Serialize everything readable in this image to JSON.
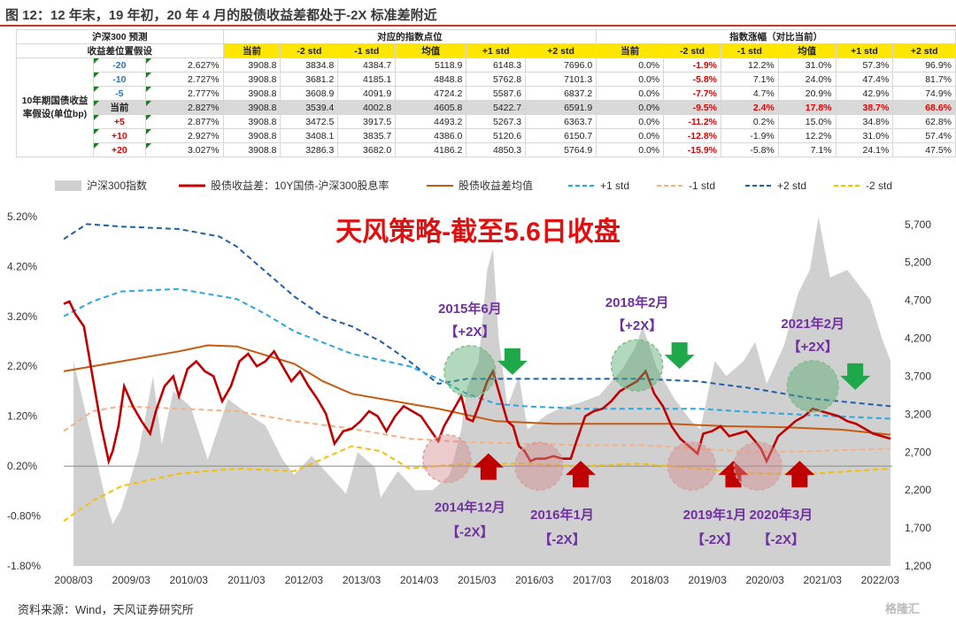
{
  "title": "图 12：12 年末，19 年初，20 年 4 月的股债收益差都处于-2X 标准差附近",
  "table": {
    "top_left_label": "沪深300 预测",
    "second_left_label": "收益差位置假设",
    "group_index_label": "对应的指数点位",
    "group_change_label": "指数涨幅（对比当前）",
    "row_group_label": "10年期国债收益率假设(单位bp)",
    "columns": [
      "当前",
      "-2 std",
      "-1 std",
      "均值",
      "+1 std",
      "+2 std"
    ],
    "rows": [
      {
        "shift": "-20",
        "yield": "2.627%",
        "idx": [
          "3908.8",
          "3834.8",
          "4384.7",
          "5118.9",
          "6148.3",
          "7696.0"
        ],
        "chg": [
          "0.0%",
          "-1.9%",
          "12.2%",
          "31.0%",
          "57.3%",
          "96.9%"
        ]
      },
      {
        "shift": "-10",
        "yield": "2.727%",
        "idx": [
          "3908.8",
          "3681.2",
          "4185.1",
          "4848.8",
          "5762.8",
          "7101.3"
        ],
        "chg": [
          "0.0%",
          "-5.8%",
          "7.1%",
          "24.0%",
          "47.4%",
          "81.7%"
        ]
      },
      {
        "shift": "-5",
        "yield": "2.777%",
        "idx": [
          "3908.8",
          "3608.9",
          "4091.9",
          "4724.2",
          "5587.6",
          "6837.2"
        ],
        "chg": [
          "0.0%",
          "-7.7%",
          "4.7%",
          "20.9%",
          "42.9%",
          "74.9%"
        ]
      },
      {
        "shift": "当前",
        "yield": "2.827%",
        "idx": [
          "3908.8",
          "3539.4",
          "4002.8",
          "4605.8",
          "5422.7",
          "6591.9"
        ],
        "chg": [
          "0.0%",
          "-9.5%",
          "2.4%",
          "17.8%",
          "38.7%",
          "68.6%"
        ]
      },
      {
        "shift": "+5",
        "yield": "2.877%",
        "idx": [
          "3908.8",
          "3472.5",
          "3917.5",
          "4493.2",
          "5267.3",
          "6363.7"
        ],
        "chg": [
          "0.0%",
          "-11.2%",
          "0.2%",
          "15.0%",
          "34.8%",
          "62.8%"
        ]
      },
      {
        "shift": "+10",
        "yield": "2.927%",
        "idx": [
          "3908.8",
          "3408.1",
          "3835.7",
          "4386.0",
          "5120.6",
          "6150.7"
        ],
        "chg": [
          "0.0%",
          "-12.8%",
          "-1.9%",
          "12.2%",
          "31.0%",
          "57.4%"
        ]
      },
      {
        "shift": "+20",
        "yield": "3.027%",
        "idx": [
          "3908.8",
          "3286.3",
          "3682.0",
          "4186.2",
          "4850.3",
          "5764.9"
        ],
        "chg": [
          "0.0%",
          "-15.9%",
          "-5.8%",
          "7.1%",
          "24.1%",
          "47.5%"
        ]
      }
    ]
  },
  "chart_data": {
    "type": "line",
    "overlay_title": "天风策略-截至5.6日收盘",
    "legend": [
      "沪深300指数",
      "股债收益差：10Y国债-沪深300股息率",
      "股债收益差均值",
      "+1 std",
      "-1 std",
      "+2 std",
      "-2 std"
    ],
    "y_left_ticks": [
      "5.20%",
      "4.20%",
      "3.20%",
      "2.20%",
      "1.20%",
      "0.20%",
      "-0.80%",
      "-1.80%"
    ],
    "y_left_range": [
      -1.8,
      5.5
    ],
    "y_right_ticks": [
      "5,700",
      "5,200",
      "4,700",
      "4,200",
      "3,700",
      "3,200",
      "2,700",
      "2,200",
      "1,700",
      "1,200"
    ],
    "y_right_range": [
      1200,
      6000
    ],
    "x_ticks": [
      "2008/03",
      "2009/03",
      "2010/03",
      "2011/03",
      "2012/03",
      "2013/03",
      "2014/03",
      "2015/03",
      "2016/03",
      "2017/03",
      "2018/03",
      "2019/03",
      "2020/03",
      "2021/03",
      "2022/03"
    ],
    "colors": {
      "spread": "#c00000",
      "mean": "#c55a11",
      "p1": "#2aa7e0",
      "m1": "#f4b183",
      "p2": "#1f5fa8",
      "m2": "#f5c000",
      "index": "#d0d0d0",
      "down": "#1fa84a",
      "up": "#c00000"
    },
    "index": [
      [
        2008.17,
        3900
      ],
      [
        2008.45,
        3000
      ],
      [
        2008.75,
        2000
      ],
      [
        2008.85,
        1750
      ],
      [
        2009.0,
        1950
      ],
      [
        2009.3,
        2700
      ],
      [
        2009.55,
        3700
      ],
      [
        2009.7,
        2800
      ],
      [
        2009.9,
        3500
      ],
      [
        2010.2,
        3300
      ],
      [
        2010.5,
        2600
      ],
      [
        2010.85,
        3400
      ],
      [
        2011.2,
        3200
      ],
      [
        2011.5,
        3050
      ],
      [
        2011.8,
        2600
      ],
      [
        2012.0,
        2400
      ],
      [
        2012.3,
        2650
      ],
      [
        2012.6,
        2400
      ],
      [
        2012.9,
        2150
      ],
      [
        2013.1,
        2700
      ],
      [
        2013.4,
        2500
      ],
      [
        2013.5,
        2100
      ],
      [
        2013.8,
        2450
      ],
      [
        2014.1,
        2200
      ],
      [
        2014.4,
        2200
      ],
      [
        2014.7,
        2400
      ],
      [
        2014.9,
        3000
      ],
      [
        2015.0,
        3550
      ],
      [
        2015.2,
        3900
      ],
      [
        2015.35,
        5100
      ],
      [
        2015.45,
        5380
      ],
      [
        2015.55,
        4200
      ],
      [
        2015.7,
        3300
      ],
      [
        2015.9,
        3700
      ],
      [
        2016.05,
        3000
      ],
      [
        2016.4,
        3200
      ],
      [
        2016.7,
        3300
      ],
      [
        2016.95,
        3350
      ],
      [
        2017.3,
        3450
      ],
      [
        2017.7,
        3800
      ],
      [
        2017.9,
        4050
      ],
      [
        2018.05,
        4350
      ],
      [
        2018.3,
        3800
      ],
      [
        2018.6,
        3400
      ],
      [
        2018.9,
        3100
      ],
      [
        2019.05,
        3000
      ],
      [
        2019.3,
        3900
      ],
      [
        2019.5,
        3700
      ],
      [
        2019.8,
        3900
      ],
      [
        2020.0,
        4150
      ],
      [
        2020.2,
        3600
      ],
      [
        2020.5,
        4100
      ],
      [
        2020.75,
        4800
      ],
      [
        2020.95,
        5100
      ],
      [
        2021.1,
        5800
      ],
      [
        2021.3,
        5000
      ],
      [
        2021.6,
        5100
      ],
      [
        2021.8,
        4900
      ],
      [
        2022.0,
        4700
      ],
      [
        2022.2,
        4200
      ],
      [
        2022.35,
        3900
      ]
    ],
    "spread": [
      [
        2008.0,
        3.45
      ],
      [
        2008.1,
        3.5
      ],
      [
        2008.2,
        3.25
      ],
      [
        2008.35,
        3.0
      ],
      [
        2008.5,
        2.0
      ],
      [
        2008.65,
        1.0
      ],
      [
        2008.78,
        0.3
      ],
      [
        2008.85,
        0.5
      ],
      [
        2008.95,
        1.0
      ],
      [
        2009.05,
        1.8
      ],
      [
        2009.2,
        1.4
      ],
      [
        2009.35,
        1.1
      ],
      [
        2009.5,
        0.85
      ],
      [
        2009.6,
        1.3
      ],
      [
        2009.75,
        1.8
      ],
      [
        2009.9,
        2.0
      ],
      [
        2010.0,
        1.6
      ],
      [
        2010.15,
        2.15
      ],
      [
        2010.3,
        2.3
      ],
      [
        2010.45,
        2.1
      ],
      [
        2010.6,
        2.0
      ],
      [
        2010.75,
        1.5
      ],
      [
        2010.9,
        1.8
      ],
      [
        2011.05,
        2.3
      ],
      [
        2011.2,
        2.45
      ],
      [
        2011.35,
        2.2
      ],
      [
        2011.5,
        2.3
      ],
      [
        2011.65,
        2.5
      ],
      [
        2011.8,
        2.2
      ],
      [
        2011.95,
        1.9
      ],
      [
        2012.1,
        2.1
      ],
      [
        2012.25,
        1.8
      ],
      [
        2012.4,
        1.55
      ],
      [
        2012.55,
        1.25
      ],
      [
        2012.7,
        0.65
      ],
      [
        2012.85,
        0.9
      ],
      [
        2013.0,
        0.95
      ],
      [
        2013.15,
        1.1
      ],
      [
        2013.3,
        1.3
      ],
      [
        2013.45,
        1.2
      ],
      [
        2013.6,
        0.9
      ],
      [
        2013.75,
        1.2
      ],
      [
        2013.9,
        1.4
      ],
      [
        2014.05,
        1.3
      ],
      [
        2014.2,
        1.2
      ],
      [
        2014.35,
        0.95
      ],
      [
        2014.5,
        0.7
      ],
      [
        2014.6,
        1.0
      ],
      [
        2014.75,
        1.3
      ],
      [
        2014.9,
        1.6
      ],
      [
        2015.0,
        1.15
      ],
      [
        2015.1,
        1.1
      ],
      [
        2015.2,
        1.4
      ],
      [
        2015.35,
        1.9
      ],
      [
        2015.45,
        2.1
      ],
      [
        2015.55,
        1.7
      ],
      [
        2015.7,
        1.1
      ],
      [
        2015.8,
        1.0
      ],
      [
        2015.9,
        0.6
      ],
      [
        2016.0,
        0.5
      ],
      [
        2016.1,
        0.3
      ],
      [
        2016.2,
        0.35
      ],
      [
        2016.35,
        0.35
      ],
      [
        2016.5,
        0.4
      ],
      [
        2016.65,
        0.35
      ],
      [
        2016.8,
        0.35
      ],
      [
        2016.9,
        0.7
      ],
      [
        2017.05,
        1.2
      ],
      [
        2017.2,
        1.3
      ],
      [
        2017.35,
        1.35
      ],
      [
        2017.5,
        1.5
      ],
      [
        2017.65,
        1.7
      ],
      [
        2017.8,
        1.8
      ],
      [
        2017.95,
        1.9
      ],
      [
        2018.1,
        2.1
      ],
      [
        2018.25,
        1.65
      ],
      [
        2018.4,
        1.4
      ],
      [
        2018.55,
        1.0
      ],
      [
        2018.7,
        0.75
      ],
      [
        2018.85,
        0.6
      ],
      [
        2019.0,
        0.45
      ],
      [
        2019.1,
        0.85
      ],
      [
        2019.25,
        0.9
      ],
      [
        2019.4,
        1.0
      ],
      [
        2019.55,
        0.8
      ],
      [
        2019.7,
        0.85
      ],
      [
        2019.85,
        0.9
      ],
      [
        2020.0,
        0.7
      ],
      [
        2020.1,
        0.55
      ],
      [
        2020.2,
        0.3
      ],
      [
        2020.3,
        0.55
      ],
      [
        2020.4,
        0.8
      ],
      [
        2020.55,
        0.95
      ],
      [
        2020.7,
        1.1
      ],
      [
        2020.85,
        1.2
      ],
      [
        2021.0,
        1.35
      ],
      [
        2021.15,
        1.3
      ],
      [
        2021.3,
        1.25
      ],
      [
        2021.45,
        1.2
      ],
      [
        2021.6,
        1.1
      ],
      [
        2021.75,
        1.05
      ],
      [
        2021.9,
        0.95
      ],
      [
        2022.05,
        0.85
      ],
      [
        2022.2,
        0.8
      ],
      [
        2022.35,
        0.75
      ]
    ],
    "mean": [
      [
        2008.0,
        2.1
      ],
      [
        2009.0,
        2.3
      ],
      [
        2010.0,
        2.5
      ],
      [
        2010.5,
        2.62
      ],
      [
        2011.0,
        2.6
      ],
      [
        2012.0,
        2.25
      ],
      [
        2012.5,
        1.9
      ],
      [
        2013.0,
        1.65
      ],
      [
        2014.0,
        1.45
      ],
      [
        2014.5,
        1.35
      ],
      [
        2015.5,
        1.1
      ],
      [
        2016.5,
        1.05
      ],
      [
        2017.5,
        1.05
      ],
      [
        2018.5,
        1.05
      ],
      [
        2019.5,
        1.0
      ],
      [
        2020.5,
        0.98
      ],
      [
        2021.5,
        0.93
      ],
      [
        2022.35,
        0.83
      ]
    ],
    "plus1": [
      [
        2008.0,
        3.2
      ],
      [
        2008.5,
        3.5
      ],
      [
        2009.0,
        3.7
      ],
      [
        2010.0,
        3.75
      ],
      [
        2011.0,
        3.55
      ],
      [
        2011.5,
        3.25
      ],
      [
        2012.0,
        2.9
      ],
      [
        2013.0,
        2.45
      ],
      [
        2014.0,
        2.2
      ],
      [
        2014.5,
        1.95
      ],
      [
        2015.0,
        1.65
      ],
      [
        2015.5,
        1.45
      ],
      [
        2016.0,
        1.4
      ],
      [
        2017.0,
        1.35
      ],
      [
        2018.0,
        1.35
      ],
      [
        2019.0,
        1.35
      ],
      [
        2020.0,
        1.28
      ],
      [
        2021.0,
        1.22
      ],
      [
        2022.35,
        1.15
      ]
    ],
    "minus1": [
      [
        2008.0,
        0.9
      ],
      [
        2008.5,
        1.3
      ],
      [
        2009.0,
        1.4
      ],
      [
        2010.0,
        1.35
      ],
      [
        2011.0,
        1.3
      ],
      [
        2012.0,
        1.1
      ],
      [
        2013.0,
        0.95
      ],
      [
        2014.0,
        0.75
      ],
      [
        2015.0,
        0.68
      ],
      [
        2016.0,
        0.65
      ],
      [
        2017.0,
        0.62
      ],
      [
        2018.0,
        0.62
      ],
      [
        2019.0,
        0.55
      ],
      [
        2020.0,
        0.48
      ],
      [
        2021.0,
        0.5
      ],
      [
        2022.35,
        0.55
      ]
    ],
    "plus2": [
      [
        2008.0,
        4.75
      ],
      [
        2008.4,
        5.05
      ],
      [
        2009.0,
        5.0
      ],
      [
        2010.0,
        4.95
      ],
      [
        2010.7,
        4.8
      ],
      [
        2011.0,
        4.6
      ],
      [
        2011.5,
        4.1
      ],
      [
        2012.0,
        3.6
      ],
      [
        2012.5,
        3.2
      ],
      [
        2013.0,
        3.0
      ],
      [
        2013.5,
        2.7
      ],
      [
        2014.0,
        2.3
      ],
      [
        2014.5,
        1.85
      ],
      [
        2015.0,
        1.95
      ],
      [
        2015.5,
        1.95
      ],
      [
        2016.0,
        1.95
      ],
      [
        2017.0,
        1.95
      ],
      [
        2018.0,
        1.95
      ],
      [
        2019.0,
        1.9
      ],
      [
        2020.0,
        1.75
      ],
      [
        2021.0,
        1.55
      ],
      [
        2022.35,
        1.4
      ]
    ],
    "minus2": [
      [
        2008.0,
        -0.9
      ],
      [
        2008.5,
        -0.5
      ],
      [
        2009.0,
        -0.2
      ],
      [
        2010.0,
        0.05
      ],
      [
        2011.0,
        0.15
      ],
      [
        2012.0,
        0.1
      ],
      [
        2013.0,
        0.6
      ],
      [
        2013.5,
        0.5
      ],
      [
        2014.0,
        0.15
      ],
      [
        2015.0,
        0.25
      ],
      [
        2016.0,
        0.25
      ],
      [
        2017.0,
        0.2
      ],
      [
        2018.0,
        0.25
      ],
      [
        2019.0,
        0.15
      ],
      [
        2020.0,
        0.05
      ],
      [
        2021.0,
        0.05
      ],
      [
        2022.35,
        0.15
      ]
    ],
    "annotations": {
      "upper": [
        {
          "x": 2015.05,
          "y": 2.1,
          "label": "2015年6月",
          "sub": "【+2X】"
        },
        {
          "x": 2017.95,
          "y": 2.22,
          "label": "2018年2月",
          "sub": "【+2X】"
        },
        {
          "x": 2021.0,
          "y": 1.8,
          "label": "2021年2月",
          "sub": "【+2X】"
        }
      ],
      "lower": [
        {
          "x": 2014.65,
          "y": 0.35,
          "label": "2014年12月",
          "sub": "【-2X】"
        },
        {
          "x": 2016.25,
          "y": 0.2,
          "label": "2016年1月",
          "sub": "【-2X】"
        },
        {
          "x": 2018.9,
          "y": 0.2,
          "label": "2019年1月",
          "sub": "【-2X】"
        },
        {
          "x": 2020.05,
          "y": 0.2,
          "label": "2020年3月",
          "sub": "【-2X】"
        }
      ]
    }
  },
  "source": "资料来源：Wind，天风证券研究所",
  "brand": "格隆汇"
}
